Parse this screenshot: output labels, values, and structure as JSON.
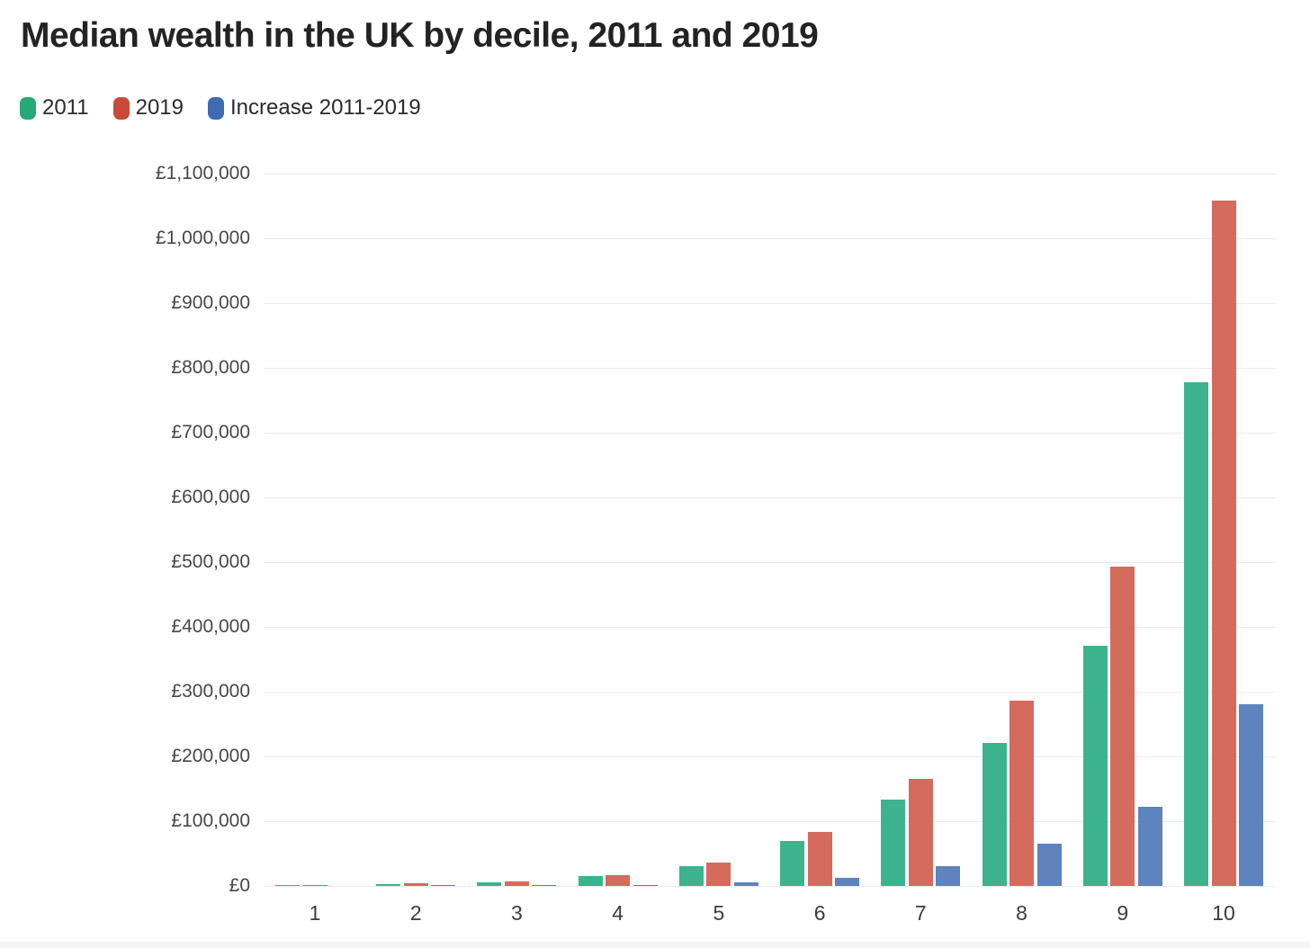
{
  "title": "Median wealth in the UK by decile, 2011 and 2019",
  "chart_data": {
    "type": "bar",
    "title": "Median wealth in the UK by decile, 2011 and 2019",
    "categories": [
      "1",
      "2",
      "3",
      "4",
      "5",
      "6",
      "7",
      "8",
      "9",
      "10"
    ],
    "series": [
      {
        "name": "2011",
        "legend_color": "#27a877",
        "bar_color": "#3db38d",
        "values": [
          500,
          3000,
          6000,
          15000,
          31000,
          70000,
          134000,
          221000,
          371000,
          778000
        ]
      },
      {
        "name": "2019",
        "legend_color": "#c94a39",
        "bar_color": "#d56b5c",
        "values": [
          500,
          3500,
          7000,
          17000,
          36000,
          83000,
          165000,
          286000,
          493000,
          1058000
        ]
      },
      {
        "name": "Increase 2011-2019",
        "legend_color": "#3d6cb4",
        "bar_color": "#5e83bd",
        "values": [
          0,
          500,
          1000,
          2000,
          5000,
          13000,
          31000,
          65000,
          122000,
          280000
        ]
      }
    ],
    "xlabel": "",
    "ylabel": "",
    "ylim": [
      0,
      1100000
    ],
    "y_tick_step": 100000,
    "y_tick_labels": [
      "£0",
      "£100,000",
      "£200,000",
      "£300,000",
      "£400,000",
      "£500,000",
      "£600,000",
      "£700,000",
      "£800,000",
      "£900,000",
      "£1,000,000",
      "£1,100,000"
    ],
    "grid": true,
    "legend_position": "top-left",
    "currency": "£"
  }
}
